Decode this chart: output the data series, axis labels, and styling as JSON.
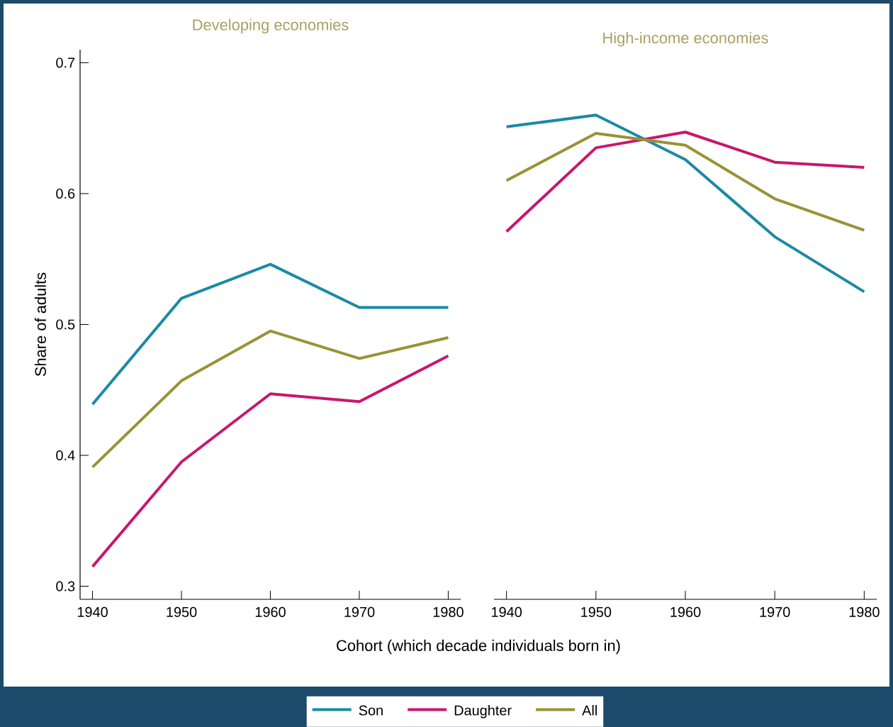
{
  "chart_data": [
    {
      "type": "line",
      "title": "Developing economies",
      "ylabel": "Share of adults",
      "xlabel": "Cohort (which decade individuals born in)",
      "legend": "bottom",
      "x": [
        1940,
        1950,
        1960,
        1970,
        1980
      ],
      "xlim": [
        1938.6,
        1981.4
      ],
      "xticks": [
        1940,
        1950,
        1960,
        1970,
        1980
      ],
      "ylim": [
        0.29,
        0.71
      ],
      "yticks": [
        0.3,
        0.4,
        0.5,
        0.6,
        0.7
      ],
      "series": [
        {
          "name": "Son",
          "color": "#1a8aa6",
          "values": [
            0.439,
            0.52,
            0.546,
            0.513,
            0.513
          ]
        },
        {
          "name": "Daughter",
          "color": "#c8176e",
          "values": [
            0.315,
            0.395,
            0.447,
            0.441,
            0.476
          ]
        },
        {
          "name": "All",
          "color": "#9a9236",
          "values": [
            0.391,
            0.457,
            0.495,
            0.474,
            0.49
          ]
        }
      ]
    },
    {
      "type": "line",
      "title": "High-income economies",
      "tick_labels": "x",
      "x": [
        1940,
        1950,
        1960,
        1970,
        1980
      ],
      "xlim": [
        1938.6,
        1981.4
      ],
      "xticks": [
        1940,
        1950,
        1960,
        1970,
        1980
      ],
      "ylim": [
        0.29,
        0.7
      ],
      "yticks": [
        0.3,
        0.4,
        0.5,
        0.6,
        0.7
      ],
      "series": [
        {
          "color": "#1a8aa6",
          "values": [
            0.651,
            0.66,
            0.626,
            0.567,
            0.525
          ]
        },
        {
          "color": "#c8176e",
          "values": [
            0.571,
            0.635,
            0.647,
            0.624,
            0.62
          ]
        },
        {
          "color": "#9a9236",
          "values": [
            0.61,
            0.646,
            0.637,
            0.596,
            0.572
          ]
        }
      ]
    }
  ]
}
